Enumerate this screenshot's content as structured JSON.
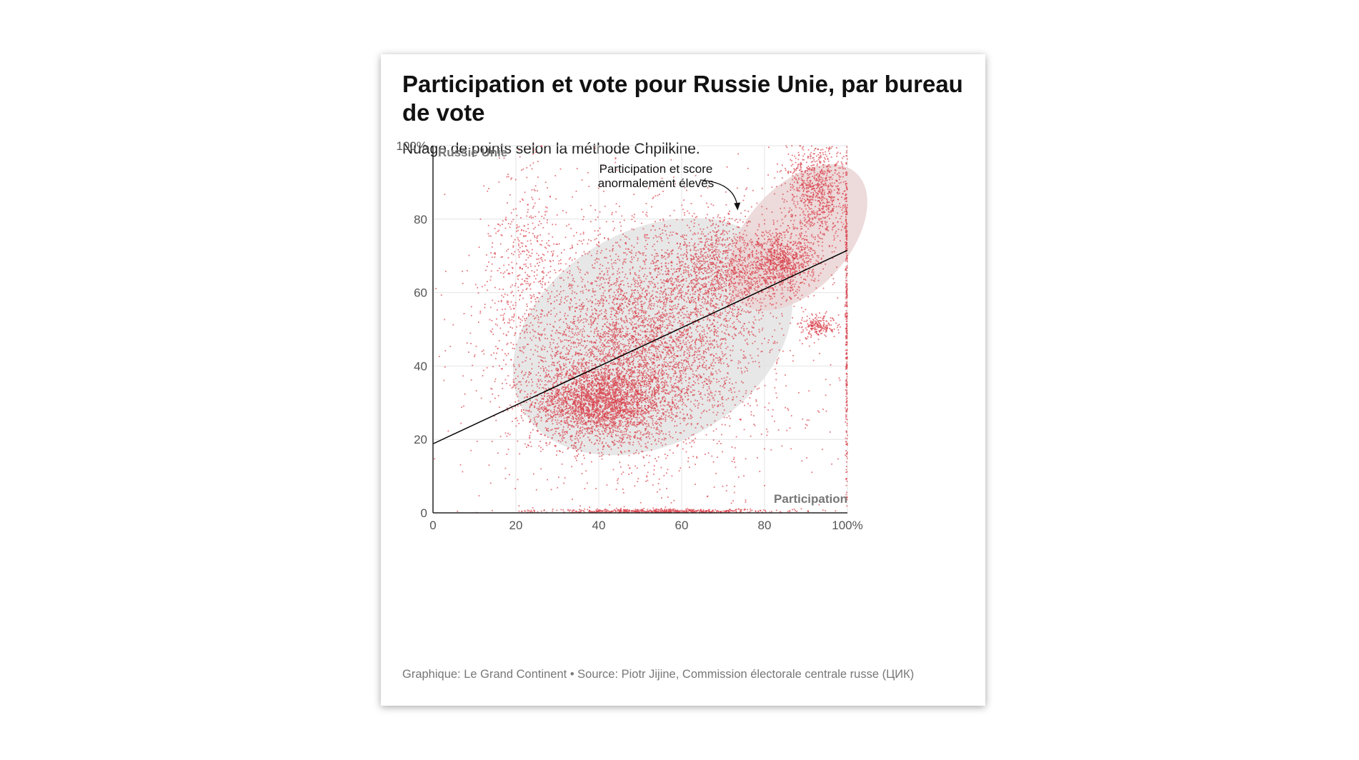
{
  "chart_data": {
    "type": "scatter",
    "title": "Participation et vote pour Russie Unie, par bureau de vote",
    "subtitle": "Nuage de points selon la méthode Chpilkine.",
    "xlabel": "Participation",
    "ylabel": "Russie Unie",
    "xlim": [
      0,
      100
    ],
    "ylim": [
      0,
      100
    ],
    "x_ticks": [
      0,
      20,
      40,
      60,
      80,
      100
    ],
    "x_tick_labels": [
      "0",
      "20",
      "40",
      "60",
      "80",
      "100%"
    ],
    "y_ticks": [
      0,
      20,
      40,
      60,
      80,
      100
    ],
    "y_tick_labels": [
      "0",
      "20",
      "40",
      "60",
      "80",
      "100%"
    ],
    "grid": true,
    "point_color": "#d9414b",
    "trend_line": {
      "x": [
        0,
        100
      ],
      "y": [
        18.8,
        71.5
      ],
      "color": "#000000"
    },
    "ellipses": [
      {
        "name": "main-cluster",
        "cx": 53,
        "cy": 48,
        "rx": 36,
        "ry": 29,
        "angle": 30,
        "color": "#e3e3e3"
      },
      {
        "name": "anomalous-cluster",
        "cx": 88,
        "cy": 75,
        "rx": 21,
        "ry": 14,
        "angle": 48,
        "color": "#ead4d4"
      }
    ],
    "clusters": [
      {
        "cx": 40,
        "cy": 30,
        "sx": 8,
        "sy": 5,
        "count": 2400
      },
      {
        "cx": 47,
        "cy": 40,
        "sx": 12,
        "sy": 12,
        "count": 2600
      },
      {
        "cx": 55,
        "cy": 55,
        "sx": 13,
        "sy": 14,
        "count": 1800
      },
      {
        "cx": 70,
        "cy": 66,
        "sx": 6,
        "sy": 7,
        "count": 1000
      },
      {
        "cx": 84,
        "cy": 68,
        "sx": 4,
        "sy": 4,
        "count": 900
      },
      {
        "cx": 93,
        "cy": 88,
        "sx": 4,
        "sy": 8,
        "count": 1000
      },
      {
        "cx": 93,
        "cy": 51,
        "sx": 2,
        "sy": 1.5,
        "count": 200
      },
      {
        "cx": 22,
        "cy": 65,
        "sx": 5,
        "sy": 16,
        "count": 500
      },
      {
        "cx": 55,
        "cy": 0.4,
        "sx": 14,
        "sy": 0.3,
        "count": 600
      },
      {
        "cx": 99.8,
        "cy": 55,
        "sx": 0.15,
        "sy": 28,
        "count": 400
      },
      {
        "cx": 55,
        "cy": 45,
        "sx": 25,
        "sy": 25,
        "count": 900
      }
    ],
    "annotation": {
      "lines": [
        "Participation et score",
        "anormalement élevés"
      ],
      "target_x": 73.5,
      "target_y": 82
    },
    "footer": "Graphique: Le Grand Continent • Source: Piotr Jijine, Commission électorale centrale russe (ЦИК)"
  }
}
